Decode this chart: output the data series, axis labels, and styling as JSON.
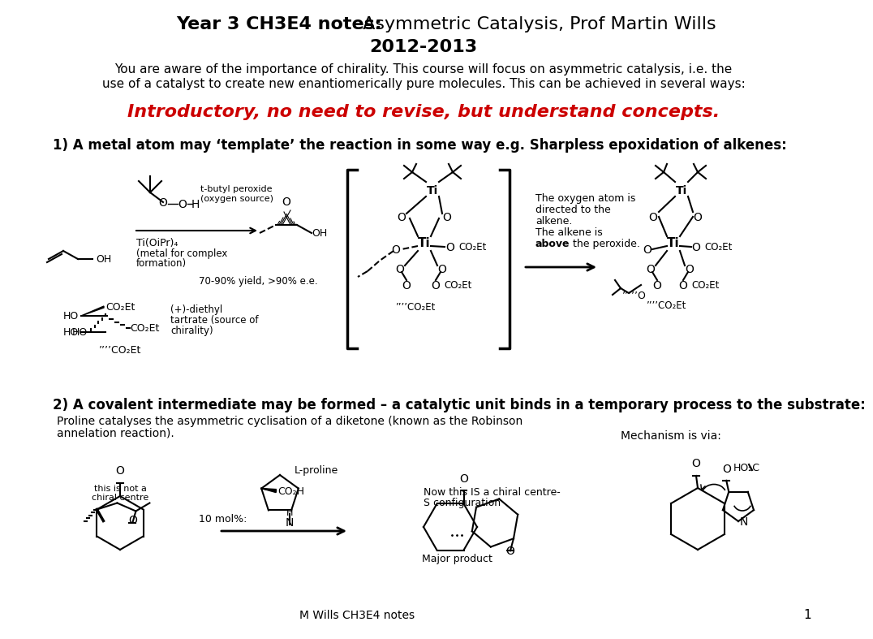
{
  "title_bold": "Year 3 CH3E4 notes:",
  "title_normal": " Asymmetric Catalysis, Prof Martin Wills",
  "title_line2": "2012-2013",
  "intro_text1": "You are aware of the importance of chirality. This course will focus on asymmetric catalysis, i.e. the",
  "intro_text2": "use of a catalyst to create new enantiomerically pure molecules. This can be achieved in several ways:",
  "red_text": "Introductory, no need to revise, but understand concepts.",
  "section1": "1) A metal atom may ‘template’ the reaction in some way e.g. Sharpless epoxidation of alkenes:",
  "section2": "2) A covalent intermediate may be formed – a catalytic unit binds in a temporary process to the substrate:",
  "proline_text1": "Proline catalyses the asymmetric cyclisation of a diketone (known as the Robinson",
  "proline_text2": "annelation reaction).",
  "mechanism_text": "Mechanism is via:",
  "footer": "M Wills CH3E4 notes",
  "page_num": "1",
  "bg_color": "#ffffff",
  "text_color": "#000000",
  "red_color": "#cc0000"
}
